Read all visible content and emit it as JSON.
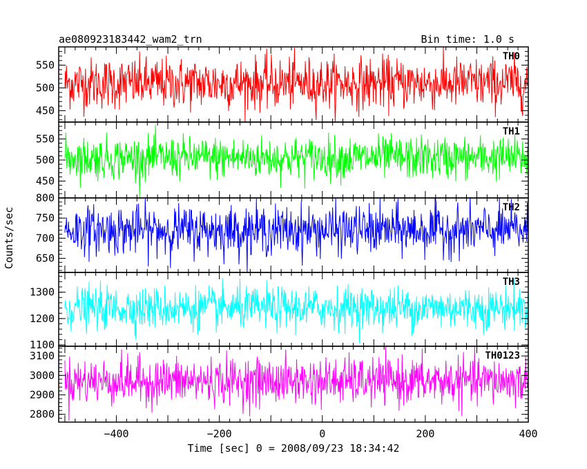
{
  "header": {
    "title": "ae080923183442_wam2_trn",
    "bin_time": "Bin time: 1.0 s"
  },
  "chart_data": {
    "type": "line",
    "title": "ae080923183442_wam2_trn",
    "xlabel": "Time [sec] 0 = 2008/09/23 18:34:42",
    "ylabel": "Counts/sec",
    "xlim": [
      -512,
      400
    ],
    "x_ticks": [
      -400,
      -200,
      0,
      200,
      400
    ],
    "x_tick_labels": [
      "−400",
      "−200",
      "0",
      "200",
      "400"
    ],
    "bin_time_s": 1.0,
    "panels": [
      {
        "name": "TH0",
        "color": "#ff0000",
        "ylim": [
          425,
          590
        ],
        "y_ticks": [
          450,
          500,
          550
        ],
        "mean": 510,
        "noise_sd": 28,
        "y_min": 425,
        "y_max": 590
      },
      {
        "name": "TH1",
        "color": "#00ff00",
        "ylim": [
          410,
          590
        ],
        "y_ticks": [
          450,
          500,
          550
        ],
        "mean": 505,
        "noise_sd": 25,
        "y_min": 410,
        "y_max": 600
      },
      {
        "name": "TH2",
        "color": "#0000ff",
        "ylim": [
          615,
          800
        ],
        "y_ticks": [
          650,
          700,
          750,
          800
        ],
        "mean": 720,
        "noise_sd": 30,
        "y_min": 615,
        "y_max": 800
      },
      {
        "name": "TH3",
        "color": "#00ffff",
        "ylim": [
          1095,
          1375
        ],
        "y_ticks": [
          1100,
          1200,
          1300
        ],
        "mean": 1240,
        "noise_sd": 40,
        "y_min": 1095,
        "y_max": 1375
      },
      {
        "name": "TH0123",
        "color": "#ff00ff",
        "ylim": [
          2760,
          3150
        ],
        "y_ticks": [
          2800,
          2900,
          3000,
          3100
        ],
        "mean": 2970,
        "noise_sd": 60,
        "y_min": 2760,
        "y_max": 3150
      }
    ]
  }
}
